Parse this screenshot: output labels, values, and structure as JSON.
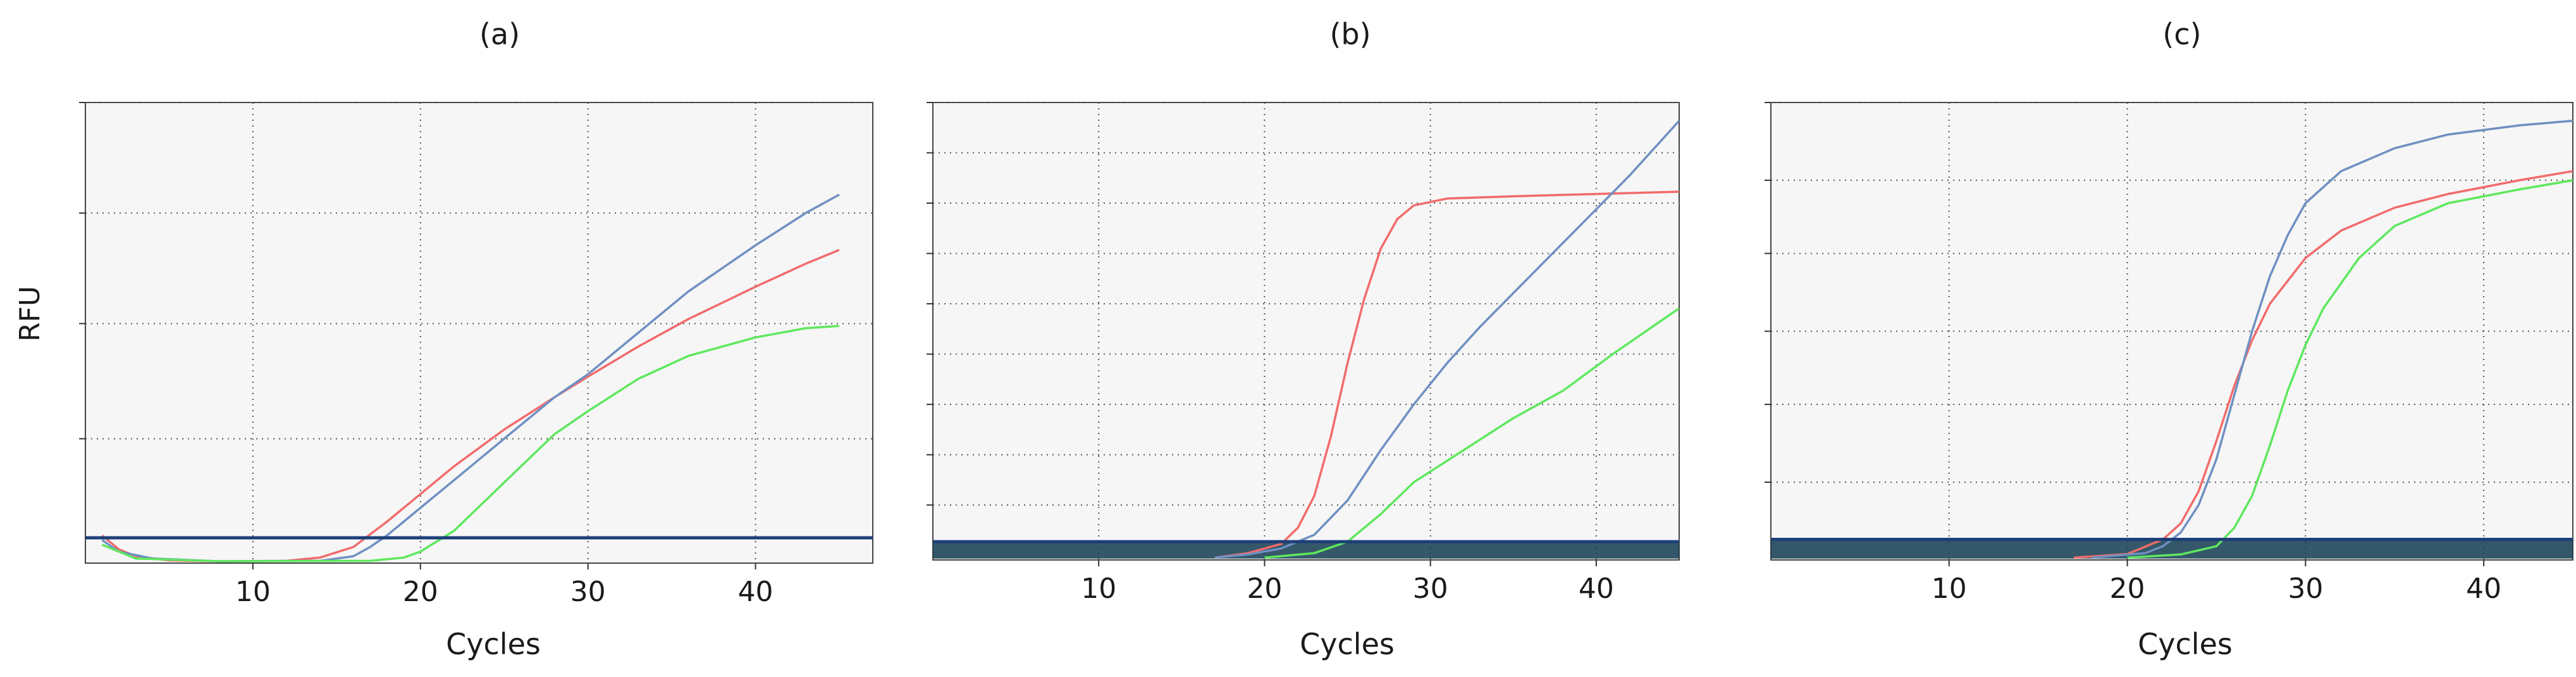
{
  "ylabel": "RFU",
  "colors": {
    "red": "#f26b6b",
    "blue": "#6f90c2",
    "green": "#5ee85e",
    "threshold": "#1c3f78",
    "baseline": "#123c50",
    "plot_bg": "#f6f6f6",
    "grid": "#555555"
  },
  "chart_data": [
    {
      "type": "line",
      "title": "(a)",
      "xlabel": "Cycles",
      "ylabel": "RFU",
      "xlim": [
        0,
        47
      ],
      "ylim": [
        0,
        100
      ],
      "xticks": [
        10,
        20,
        30,
        40
      ],
      "gridlines_x": [
        10,
        20,
        30,
        40
      ],
      "gridlines_y": [
        27,
        52,
        76,
        100
      ],
      "threshold": 5.5,
      "series": [
        {
          "name": "red",
          "color": "#f26b6b",
          "points": [
            [
              1,
              6
            ],
            [
              2,
              3
            ],
            [
              3,
              1.5
            ],
            [
              5,
              0.6
            ],
            [
              8,
              0.4
            ],
            [
              12,
              0.5
            ],
            [
              14,
              1.2
            ],
            [
              16,
              3.5
            ],
            [
              18,
              9
            ],
            [
              20,
              15
            ],
            [
              22,
              21
            ],
            [
              25,
              29
            ],
            [
              28,
              36
            ],
            [
              30,
              40.5
            ],
            [
              33,
              47
            ],
            [
              36,
              53
            ],
            [
              40,
              60
            ],
            [
              43,
              65
            ],
            [
              45,
              68
            ]
          ]
        },
        {
          "name": "blue",
          "color": "#6f90c2",
          "points": [
            [
              1,
              5
            ],
            [
              2,
              2.5
            ],
            [
              4,
              1
            ],
            [
              8,
              0.4
            ],
            [
              14,
              0.5
            ],
            [
              16,
              1.5
            ],
            [
              17,
              3.5
            ],
            [
              18,
              6
            ],
            [
              20,
              12
            ],
            [
              22,
              18
            ],
            [
              25,
              27
            ],
            [
              28,
              36
            ],
            [
              30,
              41
            ],
            [
              33,
              50
            ],
            [
              36,
              59
            ],
            [
              40,
              69
            ],
            [
              43,
              76
            ],
            [
              45,
              80
            ]
          ]
        },
        {
          "name": "green",
          "color": "#5ee85e",
          "points": [
            [
              1,
              4
            ],
            [
              3,
              1
            ],
            [
              8,
              0.4
            ],
            [
              17,
              0.5
            ],
            [
              19,
              1.2
            ],
            [
              20,
              2.5
            ],
            [
              22,
              7
            ],
            [
              24,
              14
            ],
            [
              26,
              21
            ],
            [
              28,
              28
            ],
            [
              30,
              33
            ],
            [
              33,
              40
            ],
            [
              36,
              45
            ],
            [
              40,
              49
            ],
            [
              43,
              51
            ],
            [
              45,
              51.5
            ]
          ]
        }
      ]
    },
    {
      "type": "line",
      "title": "(b)",
      "xlabel": "Cycles",
      "ylabel": "",
      "xlim": [
        0,
        45
      ],
      "ylim": [
        0,
        100
      ],
      "xticks": [
        10,
        20,
        30,
        40
      ],
      "gridlines_x": [
        10,
        20,
        30,
        40
      ],
      "gridlines_y": [
        12,
        23,
        34,
        45,
        56,
        67,
        78,
        89,
        100
      ],
      "threshold": 4,
      "series": [
        {
          "name": "red",
          "color": "#f26b6b",
          "points": [
            [
              17,
              0.5
            ],
            [
              19,
              1.5
            ],
            [
              21,
              3.5
            ],
            [
              22,
              7
            ],
            [
              23,
              14
            ],
            [
              24,
              27
            ],
            [
              25,
              43
            ],
            [
              26,
              57
            ],
            [
              27,
              68
            ],
            [
              28,
              74.5
            ],
            [
              29,
              77.5
            ],
            [
              31,
              79
            ],
            [
              35,
              79.5
            ],
            [
              40,
              80
            ],
            [
              45,
              80.5
            ]
          ]
        },
        {
          "name": "blue",
          "color": "#6f90c2",
          "points": [
            [
              17,
              0.5
            ],
            [
              19,
              1.2
            ],
            [
              21,
              2.5
            ],
            [
              23,
              5.5
            ],
            [
              25,
              13
            ],
            [
              27,
              24
            ],
            [
              29,
              34
            ],
            [
              31,
              43
            ],
            [
              33,
              51
            ],
            [
              36,
              62
            ],
            [
              39,
              73
            ],
            [
              42,
              84
            ],
            [
              45,
              96
            ]
          ]
        },
        {
          "name": "green",
          "color": "#5ee85e",
          "points": [
            [
              20,
              0.5
            ],
            [
              23,
              1.5
            ],
            [
              25,
              4
            ],
            [
              27,
              10
            ],
            [
              29,
              17
            ],
            [
              32,
              24
            ],
            [
              35,
              31
            ],
            [
              38,
              37
            ],
            [
              41,
              45
            ],
            [
              45,
              55
            ]
          ]
        }
      ]
    },
    {
      "type": "line",
      "title": "(c)",
      "xlabel": "Cycles",
      "ylabel": "",
      "xlim": [
        0,
        45
      ],
      "ylim": [
        0,
        100
      ],
      "xticks": [
        10,
        20,
        30,
        40
      ],
      "gridlines_x": [
        10,
        20,
        30,
        40
      ],
      "gridlines_y": [
        17,
        34,
        50,
        67,
        83,
        100
      ],
      "threshold": 4.5,
      "series": [
        {
          "name": "red",
          "color": "#f26b6b",
          "points": [
            [
              17,
              0.5
            ],
            [
              20,
              1.3
            ],
            [
              22,
              4.5
            ],
            [
              23,
              8
            ],
            [
              24,
              15
            ],
            [
              25,
              26
            ],
            [
              26,
              38
            ],
            [
              27,
              48
            ],
            [
              28,
              56
            ],
            [
              30,
              66
            ],
            [
              32,
              72
            ],
            [
              35,
              77
            ],
            [
              38,
              80
            ],
            [
              42,
              83
            ],
            [
              45,
              85
            ]
          ]
        },
        {
          "name": "blue",
          "color": "#6f90c2",
          "points": [
            [
              18,
              0.5
            ],
            [
              21,
              1.5
            ],
            [
              22,
              3
            ],
            [
              23,
              6
            ],
            [
              24,
              12
            ],
            [
              25,
              22
            ],
            [
              26,
              36
            ],
            [
              27,
              50
            ],
            [
              28,
              62
            ],
            [
              29,
              71
            ],
            [
              30,
              78
            ],
            [
              32,
              85
            ],
            [
              35,
              90
            ],
            [
              38,
              93
            ],
            [
              42,
              95
            ],
            [
              45,
              96
            ]
          ]
        },
        {
          "name": "green",
          "color": "#5ee85e",
          "points": [
            [
              20,
              0.5
            ],
            [
              23,
              1.2
            ],
            [
              25,
              3
            ],
            [
              26,
              7
            ],
            [
              27,
              14
            ],
            [
              28,
              25
            ],
            [
              29,
              37
            ],
            [
              30,
              47
            ],
            [
              31,
              55
            ],
            [
              33,
              66
            ],
            [
              35,
              73
            ],
            [
              38,
              78
            ],
            [
              42,
              81
            ],
            [
              45,
              83
            ]
          ]
        }
      ]
    }
  ]
}
